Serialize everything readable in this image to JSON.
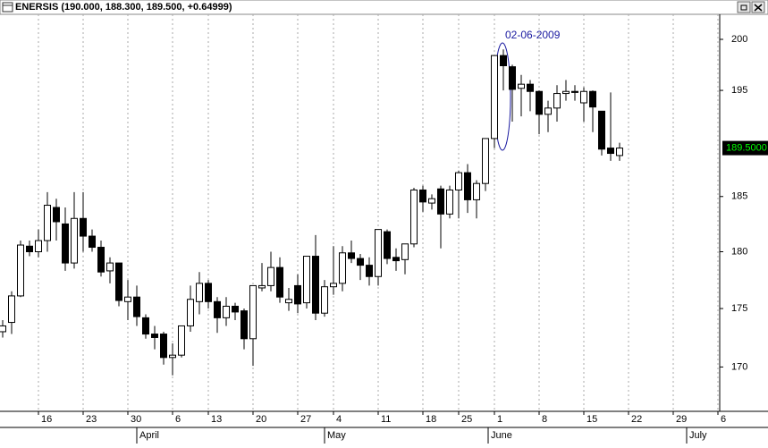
{
  "chart_data": {
    "type": "candlestick",
    "title": "ENERSIS (190.000, 188.300, 189.500, +0.64999)",
    "annotation": "02-06-2009",
    "log_scale": true,
    "grid": true,
    "up_color": "#ffffff",
    "down_color": "#000000",
    "xlim": [
      -0.3,
      80.2
    ],
    "ylim": [
      166.3,
      202.5
    ],
    "yticks": [
      170,
      175,
      180,
      185,
      195,
      200
    ],
    "xticks": [
      {
        "value": 4,
        "label": "16"
      },
      {
        "value": 9,
        "label": "23"
      },
      {
        "value": 14,
        "label": "30"
      },
      {
        "value": 19,
        "label": "6"
      },
      {
        "value": 23,
        "label": "13"
      },
      {
        "value": 28,
        "label": "20"
      },
      {
        "value": 33,
        "label": "27"
      },
      {
        "value": 37,
        "label": "4"
      },
      {
        "value": 42,
        "label": "11"
      },
      {
        "value": 47,
        "label": "18"
      },
      {
        "value": 51,
        "label": "25"
      },
      {
        "value": 55,
        "label": "1"
      },
      {
        "value": 60,
        "label": "8"
      },
      {
        "value": 65,
        "label": "15"
      },
      {
        "value": 70,
        "label": "22"
      },
      {
        "value": 75,
        "label": "29"
      },
      {
        "value": 80,
        "label": "6"
      }
    ],
    "months": [
      {
        "value": 15,
        "label": "April"
      },
      {
        "value": 36,
        "label": "May"
      },
      {
        "value": 54.3,
        "label": "June"
      },
      {
        "value": 76.5,
        "label": "July"
      }
    ],
    "last_price": {
      "value": 189.5,
      "label": "189.5000"
    },
    "open": [
      173.0,
      173.8,
      176.1,
      180.5,
      180,
      181,
      184,
      182.5,
      179,
      183,
      181.4,
      180.4,
      178.3,
      179,
      175.6,
      176,
      174.2,
      172.8,
      172.8,
      170.8,
      171,
      173.5,
      175.6,
      177.2,
      175.6,
      174.2,
      175.2,
      174.8,
      172.4,
      176.8,
      177,
      178.6,
      175.5,
      177,
      175.5,
      179.6,
      174.6,
      176.9,
      177.2,
      179.9,
      179.4,
      178.8,
      177.8,
      181.8,
      179.5,
      179.3,
      180.7,
      185.6,
      184.4,
      185.7,
      183.4,
      185.6,
      187.2,
      184.7,
      186.2,
      190.4,
      198.4,
      197.3,
      195.2,
      195.6,
      194.9,
      192.7,
      193.3,
      194.7,
      194.9,
      193.8,
      194.9,
      193,
      189.5,
      188.8
    ],
    "high": [
      174,
      176.5,
      181,
      181,
      182,
      185.4,
      184.8,
      184,
      185.4,
      185.4,
      182,
      181,
      179.5,
      179,
      177.5,
      177,
      174.5,
      173.5,
      173,
      172,
      173.5,
      177,
      178.2,
      177.5,
      176,
      176,
      175.5,
      175,
      177,
      179,
      180,
      179.5,
      176.8,
      178,
      179.6,
      181.5,
      177.5,
      180.5,
      180.5,
      181,
      179.8,
      179.5,
      182,
      182,
      180.3,
      180.7,
      185.8,
      186,
      185.2,
      186,
      186,
      187.4,
      188,
      186.5,
      190.4,
      198.4,
      199,
      197.5,
      196.5,
      196,
      195,
      194,
      195.5,
      196,
      195.5,
      195.3,
      195,
      193,
      194.8,
      190
    ],
    "low": [
      172.5,
      172.8,
      176,
      179.6,
      179.5,
      180,
      181,
      178.3,
      178.5,
      180,
      180,
      177.8,
      177.2,
      175.2,
      174,
      173.5,
      172.4,
      171.5,
      170.2,
      169.3,
      170.8,
      173,
      174.5,
      175,
      172.9,
      173.5,
      174,
      171.5,
      170.1,
      176.5,
      176.5,
      175.5,
      174.8,
      174.6,
      175,
      174,
      174.3,
      176.2,
      176.5,
      179,
      177.5,
      177,
      177,
      178.9,
      178.3,
      178,
      180.4,
      183.6,
      183.8,
      180.3,
      183,
      183,
      183.5,
      183,
      185.5,
      189.5,
      195,
      192,
      192.5,
      193,
      190.8,
      191,
      192,
      194,
      194,
      192,
      191,
      188.8,
      188.3,
      188.3
    ],
    "close": [
      173.5,
      176.1,
      180.6,
      180,
      181,
      184.2,
      182.7,
      179,
      183,
      181.4,
      180.4,
      178.2,
      179,
      175.7,
      176,
      174.3,
      172.8,
      172.5,
      170.8,
      171,
      173.5,
      175.8,
      177.2,
      175.6,
      174.2,
      175.2,
      174.7,
      172.4,
      177,
      177,
      178.6,
      176,
      175.8,
      175.4,
      179.6,
      174.6,
      176.9,
      177.2,
      179.9,
      179.4,
      178.8,
      177.8,
      182,
      179.4,
      179.2,
      180.7,
      185.6,
      184.5,
      184.8,
      183.4,
      185.6,
      187.2,
      184.7,
      186.2,
      190.4,
      198.4,
      197.4,
      195.1,
      195.6,
      194.9,
      192.7,
      193.3,
      194.7,
      194.9,
      194.8,
      194.9,
      193.4,
      189.4,
      189,
      189.5
    ]
  }
}
